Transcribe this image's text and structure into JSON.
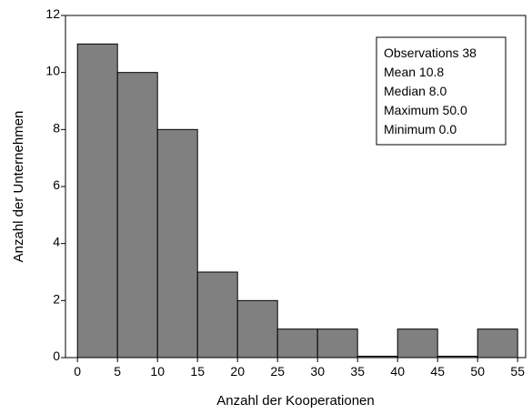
{
  "chart_data": {
    "type": "bar",
    "subtype": "histogram",
    "title": "",
    "xlabel": "Anzahl der Kooperationen",
    "ylabel": "Anzahl der Unternehmen",
    "bins": [
      {
        "x0": 0,
        "x1": 5,
        "value": 11
      },
      {
        "x0": 5,
        "x1": 10,
        "value": 10
      },
      {
        "x0": 10,
        "x1": 15,
        "value": 8
      },
      {
        "x0": 15,
        "x1": 20,
        "value": 3
      },
      {
        "x0": 20,
        "x1": 25,
        "value": 2
      },
      {
        "x0": 25,
        "x1": 30,
        "value": 1
      },
      {
        "x0": 30,
        "x1": 35,
        "value": 1
      },
      {
        "x0": 35,
        "x1": 40,
        "value": 0
      },
      {
        "x0": 40,
        "x1": 45,
        "value": 1
      },
      {
        "x0": 45,
        "x1": 50,
        "value": 0
      },
      {
        "x0": 50,
        "x1": 55,
        "value": 1
      }
    ],
    "xlim": [
      -1.5,
      56
    ],
    "ylim": [
      0,
      12
    ],
    "xticks": [
      0,
      5,
      10,
      15,
      20,
      25,
      30,
      35,
      40,
      45,
      50,
      55
    ],
    "yticks": [
      0,
      2,
      4,
      6,
      8,
      10,
      12
    ],
    "bar_color": "#808080",
    "grid": false,
    "legend": "none",
    "annotation_placement": "top-right",
    "stats_box": [
      "Observations  38",
      "Mean  10.8",
      "Median 8.0",
      "Maximum 50.0",
      "Minimum 0.0"
    ]
  }
}
